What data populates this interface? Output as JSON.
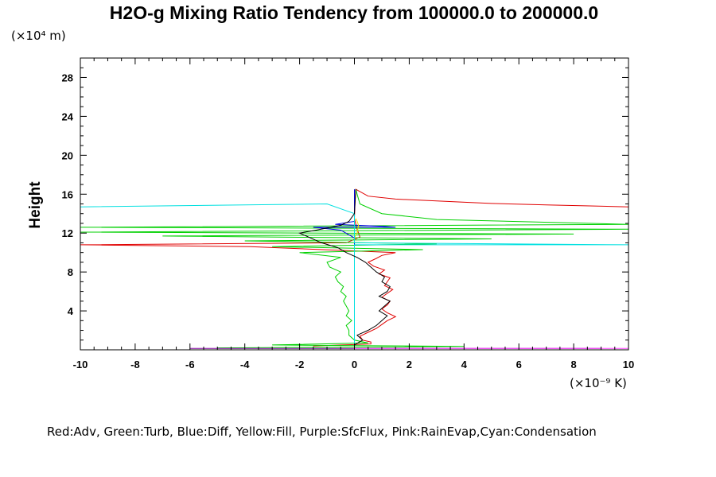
{
  "chart_data": {
    "type": "line",
    "title": "H2O-g Mixing Ratio Tendency from 100000.0 to 200000.0",
    "ylabel": "Height",
    "xlabel": "",
    "x_unit_label": "(×10⁻⁹ K)",
    "y_unit_label": "(×10⁴ m)",
    "xlim": [
      -10,
      10
    ],
    "ylim": [
      0,
      30
    ],
    "x_ticks": [
      -10,
      -8,
      -6,
      -4,
      -2,
      0,
      2,
      4,
      6,
      8,
      10
    ],
    "y_ticks": [
      4,
      8,
      12,
      16,
      20,
      24,
      28
    ],
    "grid": false,
    "legend_text": "Red:Adv, Green:Turb, Blue:Diff, Yellow:Fill, Purple:SfcFlux, Pink:RainEvap,Cyan:Condensation",
    "legend_position": "bottom",
    "colors": {
      "Adv": "#e00000",
      "Turb": "#00d000",
      "Diff": "#0000e0",
      "Fill": "#f0e000",
      "SfcFlux": "#8000a0",
      "RainEvap": "#ff40ff",
      "Condensation": "#00e0e0",
      "Total": "#000000"
    },
    "series": [
      {
        "name": "Red:Adv",
        "points": [
          [
            -1.5,
            0.4
          ],
          [
            0.6,
            0.6
          ],
          [
            0.6,
            0.8
          ],
          [
            0.3,
            1.0
          ],
          [
            0.2,
            1.4
          ],
          [
            0.5,
            1.8
          ],
          [
            0.8,
            2.2
          ],
          [
            1.0,
            2.6
          ],
          [
            1.2,
            3.0
          ],
          [
            1.5,
            3.4
          ],
          [
            1.2,
            3.8
          ],
          [
            1.0,
            4.2
          ],
          [
            1.2,
            4.6
          ],
          [
            1.3,
            5.0
          ],
          [
            1.0,
            5.4
          ],
          [
            1.2,
            5.8
          ],
          [
            1.4,
            6.2
          ],
          [
            1.1,
            6.6
          ],
          [
            1.2,
            7.0
          ],
          [
            1.3,
            7.4
          ],
          [
            0.9,
            7.8
          ],
          [
            1.1,
            8.2
          ],
          [
            0.7,
            8.6
          ],
          [
            0.5,
            9.0
          ],
          [
            0.8,
            9.4
          ],
          [
            1.0,
            9.7
          ],
          [
            1.5,
            10.0
          ],
          [
            -3.8,
            10.6
          ],
          [
            -10,
            10.8
          ],
          [
            -0.3,
            11.0
          ],
          [
            0.2,
            11.6
          ],
          [
            0.1,
            12.4
          ],
          [
            0.0,
            13.5
          ],
          [
            0.02,
            15.0
          ],
          [
            0.05,
            16.5
          ],
          [
            0.5,
            15.8
          ],
          [
            1.5,
            15.5
          ],
          [
            3.0,
            15.3
          ],
          [
            5.0,
            15.05
          ],
          [
            7.0,
            14.9
          ],
          [
            10,
            14.7
          ]
        ]
      },
      {
        "name": "Green:Turb",
        "points": [
          [
            -5.0,
            0.2
          ],
          [
            2.0,
            0.3
          ],
          [
            4.0,
            0.35
          ],
          [
            -3.0,
            0.5
          ],
          [
            0.5,
            0.7
          ],
          [
            0.0,
            1.0
          ],
          [
            -0.2,
            1.5
          ],
          [
            -0.2,
            2.0
          ],
          [
            -0.3,
            2.5
          ],
          [
            -0.1,
            3.0
          ],
          [
            -0.3,
            3.5
          ],
          [
            -0.2,
            4.0
          ],
          [
            -0.3,
            4.5
          ],
          [
            -0.4,
            5.0
          ],
          [
            -0.3,
            5.5
          ],
          [
            -0.5,
            6.0
          ],
          [
            -0.4,
            6.5
          ],
          [
            -0.6,
            7.0
          ],
          [
            -0.7,
            7.5
          ],
          [
            -0.5,
            8.0
          ],
          [
            -0.9,
            8.5
          ],
          [
            -1.0,
            9.0
          ],
          [
            -0.5,
            9.5
          ],
          [
            -2.0,
            10.0
          ],
          [
            2.5,
            10.3
          ],
          [
            -3.0,
            10.6
          ],
          [
            3.0,
            10.9
          ],
          [
            -4.0,
            11.2
          ],
          [
            5.0,
            11.4
          ],
          [
            -7.0,
            11.7
          ],
          [
            8.0,
            11.9
          ],
          [
            -10,
            12.1
          ],
          [
            10,
            12.4
          ],
          [
            -10,
            12.6
          ],
          [
            10,
            12.9
          ],
          [
            3.0,
            13.4
          ],
          [
            1.0,
            14.0
          ],
          [
            0.2,
            15.0
          ],
          [
            0.1,
            16.0
          ],
          [
            0.05,
            16.5
          ]
        ]
      },
      {
        "name": "Blue:Diff",
        "points": [
          [
            0.0,
            0.1
          ],
          [
            0.0,
            10.0
          ],
          [
            0.0,
            11.5
          ],
          [
            -0.5,
            12.3
          ],
          [
            -1.5,
            12.6
          ],
          [
            1.5,
            12.6
          ],
          [
            1.0,
            12.7
          ],
          [
            -0.7,
            12.9
          ],
          [
            0.0,
            13.2
          ],
          [
            0.0,
            16.5
          ]
        ]
      },
      {
        "name": "Yellow:Fill",
        "points": [
          [
            0.0,
            11.5
          ],
          [
            0.1,
            12.0
          ],
          [
            0.15,
            12.8
          ],
          [
            0.1,
            13.2
          ],
          [
            0.05,
            13.5
          ]
        ]
      },
      {
        "name": "Purple:SfcFlux",
        "points": [
          [
            -6.0,
            0.15
          ],
          [
            9.0,
            0.15
          ]
        ]
      },
      {
        "name": "Pink:RainEvap",
        "points": [
          [
            0.0,
            0.15
          ],
          [
            10.0,
            0.15
          ]
        ]
      },
      {
        "name": "Cyan:Condensation",
        "points": [
          [
            0.0,
            0.0
          ],
          [
            0.0,
            10.8
          ],
          [
            10,
            10.8
          ],
          [
            0.0,
            11.0
          ],
          [
            0.0,
            14.0
          ],
          [
            -1.0,
            15.0
          ],
          [
            -4.0,
            14.9
          ],
          [
            -10,
            14.7
          ]
        ]
      },
      {
        "name": "Total",
        "points": [
          [
            0.0,
            0.5
          ],
          [
            0.3,
            1.0
          ],
          [
            0.1,
            1.5
          ],
          [
            0.5,
            2.0
          ],
          [
            0.8,
            2.5
          ],
          [
            1.0,
            3.0
          ],
          [
            1.2,
            3.5
          ],
          [
            0.9,
            4.0
          ],
          [
            1.1,
            4.5
          ],
          [
            1.3,
            5.0
          ],
          [
            0.9,
            5.5
          ],
          [
            1.2,
            6.0
          ],
          [
            1.3,
            6.5
          ],
          [
            1.0,
            7.0
          ],
          [
            1.1,
            7.5
          ],
          [
            0.8,
            8.0
          ],
          [
            0.6,
            8.5
          ],
          [
            0.4,
            9.0
          ],
          [
            0.1,
            9.5
          ],
          [
            -0.3,
            10.0
          ],
          [
            -0.6,
            10.5
          ],
          [
            -1.2,
            11.0
          ],
          [
            -1.6,
            11.5
          ],
          [
            -2.0,
            12.0
          ],
          [
            -1.4,
            12.3
          ],
          [
            -0.5,
            12.8
          ],
          [
            -0.2,
            13.2
          ],
          [
            0.0,
            14.0
          ],
          [
            0.05,
            16.5
          ]
        ]
      }
    ]
  }
}
